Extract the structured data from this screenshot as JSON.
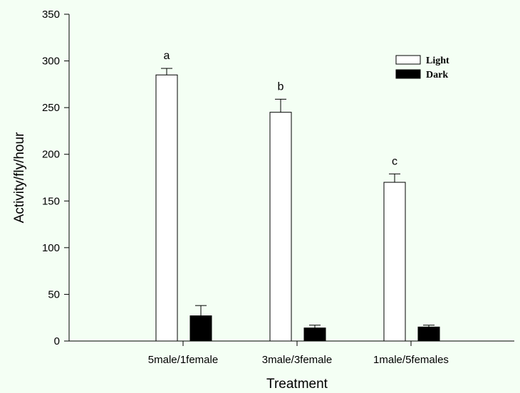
{
  "chart_data": {
    "type": "bar",
    "title": "",
    "xlabel": "Treatment",
    "ylabel": "Activity/fly/hour",
    "ylim": [
      0,
      350
    ],
    "yticks": [
      0,
      50,
      100,
      150,
      200,
      250,
      300,
      350
    ],
    "grid": false,
    "legend_position": "top-right",
    "categories": [
      "5male/1female",
      "3male/3female",
      "1male/5females"
    ],
    "series": [
      {
        "name": "Light",
        "fill": "#ffffff",
        "values": [
          285,
          245,
          170
        ],
        "errors": [
          7,
          14,
          9
        ]
      },
      {
        "name": "Dark",
        "fill": "#000000",
        "values": [
          27,
          14,
          15
        ],
        "errors": [
          11,
          3,
          2
        ]
      }
    ],
    "annotations": [
      {
        "category": "5male/1female",
        "series": "Light",
        "text": "a"
      },
      {
        "category": "3male/3female",
        "series": "Light",
        "text": "b"
      },
      {
        "category": "1male/5females",
        "series": "Light",
        "text": "c"
      }
    ]
  }
}
